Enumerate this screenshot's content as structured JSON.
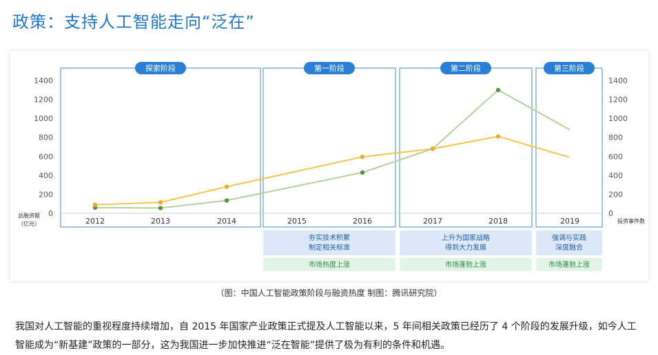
{
  "page": {
    "title": "政策：支持人工智能走向“泛在”",
    "caption": "（图：中国人工智能政策阶段与融资热度 制图：腾讯研究院）",
    "body_paragraph": "我国对人工智能的重视程度持续增加，自 2015 年国家产业政策正式提及人工智能以来，5 年间相关政策已经历了 4 个阶段的发展升级，如今人工智能成为“新基建”政策的一部分，这为我国进一步加快推进“泛在智能”提供了极为有利的条件和机遇。"
  },
  "colors": {
    "title": "#1f78c8",
    "phase_border": "#5a9fe0",
    "phase_label_bg": "#2a7fd4",
    "funding_line": "#f5c64b",
    "events_line": "#b3d19a",
    "events_point": "#4a9a3c",
    "funding_point": "#f0a830",
    "desc_box_bg": "#dde9f8",
    "market_box_bg": "#e1f4e6",
    "market_text": "#2e8a45",
    "desc_text": "#1f5fa8",
    "axis_text": "#555555"
  },
  "chart_data": {
    "type": "line",
    "categories": [
      "2012",
      "2013",
      "2014",
      "2015",
      "2016",
      "2017",
      "2018",
      "2019"
    ],
    "left_axis": {
      "label_line1": "总融资额",
      "label_line2": "（亿元）",
      "ticks": [
        0,
        200,
        400,
        600,
        800,
        1000,
        1200,
        1400
      ],
      "ylim": [
        0,
        1400
      ]
    },
    "right_axis": {
      "label": "投资事件数",
      "ticks": [
        0,
        200,
        400,
        600,
        800,
        1000,
        1200,
        1400
      ],
      "ylim": [
        0,
        1400
      ]
    },
    "series": [
      {
        "axis": "left",
        "x": [
          "2012",
          "2013",
          "2014",
          "2016",
          "2017",
          "2018",
          "2019"
        ],
        "values": [
          90,
          115,
          280,
          595,
          680,
          810,
          590
        ]
      },
      {
        "axis": "right",
        "x": [
          "2012",
          "2013",
          "2014",
          "2016",
          "2017",
          "2018",
          "2019"
        ],
        "values": [
          60,
          55,
          135,
          430,
          680,
          1300,
          880
        ]
      }
    ],
    "phases": [
      {
        "label": "探索阶段",
        "years": [
          "2012",
          "2013",
          "2014"
        ],
        "description": [],
        "market": ""
      },
      {
        "label": "第一阶段",
        "years": [
          "2015",
          "2016"
        ],
        "description": [
          "夯实技术积累",
          "制定相关标准"
        ],
        "market": "市场热度上涨"
      },
      {
        "label": "第二阶段",
        "years": [
          "2017",
          "2018"
        ],
        "description": [
          "上升为国家战略",
          "得到大力发展"
        ],
        "market": "市场蓬勃上涨"
      },
      {
        "label": "第三阶段",
        "years": [
          "2019"
        ],
        "description": [
          "强调与实践",
          "深度融合"
        ],
        "market": "市场蓬勃上涨"
      }
    ],
    "grid": false,
    "legend": "none"
  }
}
